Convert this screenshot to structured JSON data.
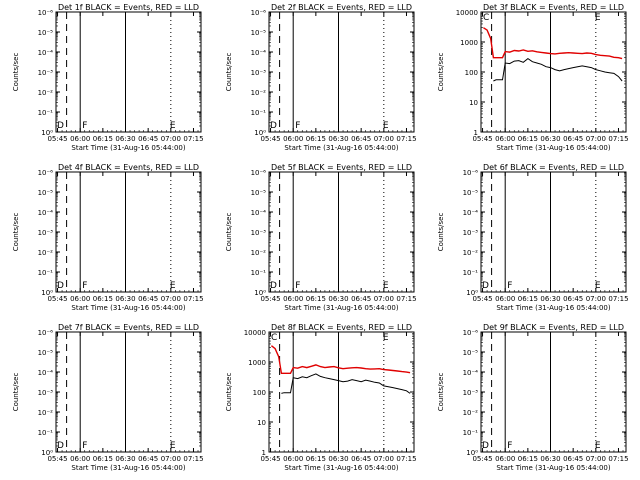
{
  "figure": {
    "time_ticks": [
      "05:45",
      "06:00",
      "06:15",
      "06:30",
      "06:45",
      "07:00",
      "07:15"
    ],
    "xlabel": "Start Time (31-Aug-16 05:44:00)",
    "ylabel": "Counts/sec",
    "tick_labels": {
      "empty": [
        "10⁰",
        "10⁻¹",
        "10⁻²",
        "10⁻³",
        "10⁻⁴",
        "10⁻⁵",
        "10⁻⁶"
      ],
      "log": [
        "1",
        "10",
        "100",
        "1000",
        "10000"
      ]
    },
    "markers": {
      "d": "D",
      "f": "F",
      "e": "E",
      "c": "C"
    },
    "colors": {
      "events": "#000000",
      "lld": "#e00000"
    }
  },
  "chart_data": [
    {
      "type": "line",
      "title": "Det 1f BLACK = Events, RED = LLD",
      "scale": "empty",
      "series": []
    },
    {
      "type": "line",
      "title": "Det 2f BLACK = Events, RED = LLD",
      "scale": "empty",
      "series": []
    },
    {
      "type": "line",
      "title": "Det 3f BLACK = Events, RED = LLD",
      "scale": "log",
      "ylim": [
        1,
        10000
      ],
      "x": [
        5.76,
        5.8,
        5.84,
        5.87,
        5.9,
        5.93,
        5.97,
        6.0,
        6.05,
        6.1,
        6.15,
        6.2,
        6.25,
        6.3,
        6.35,
        6.4,
        6.45,
        6.5,
        6.55,
        6.6,
        6.65,
        6.7,
        6.75,
        6.8,
        6.85,
        6.9,
        6.95,
        7.0,
        7.05,
        7.1,
        7.15,
        7.2,
        7.25,
        7.29
      ],
      "series": [
        {
          "name": "LLD",
          "color": "red",
          "values": [
            3000,
            2500,
            1300,
            300,
            300,
            300,
            300,
            480,
            460,
            520,
            500,
            540,
            490,
            510,
            470,
            450,
            430,
            410,
            400,
            420,
            430,
            440,
            430,
            420,
            410,
            430,
            420,
            380,
            360,
            350,
            340,
            310,
            300,
            280
          ]
        },
        {
          "name": "Events",
          "color": "black",
          "values": [
            null,
            null,
            null,
            50,
            55,
            55,
            55,
            200,
            190,
            230,
            240,
            210,
            280,
            220,
            200,
            180,
            150,
            140,
            120,
            110,
            120,
            130,
            140,
            150,
            160,
            150,
            140,
            120,
            110,
            100,
            95,
            90,
            70,
            50
          ]
        }
      ]
    },
    {
      "type": "line",
      "title": "Det 4f BLACK = Events, RED = LLD",
      "scale": "empty",
      "series": []
    },
    {
      "type": "line",
      "title": "Det 5f BLACK = Events, RED = LLD",
      "scale": "empty",
      "series": []
    },
    {
      "type": "line",
      "title": "Det 6f BLACK = Events, RED = LLD",
      "scale": "empty",
      "series": []
    },
    {
      "type": "line",
      "title": "Det 7f BLACK = Events, RED = LLD",
      "scale": "empty",
      "series": []
    },
    {
      "type": "line",
      "title": "Det 8f BLACK = Events, RED = LLD",
      "scale": "log",
      "ylim": [
        1,
        10000
      ],
      "x": [
        5.76,
        5.8,
        5.84,
        5.87,
        5.9,
        5.93,
        5.97,
        6.0,
        6.05,
        6.1,
        6.15,
        6.2,
        6.25,
        6.3,
        6.35,
        6.4,
        6.45,
        6.5,
        6.55,
        6.6,
        6.65,
        6.7,
        6.75,
        6.8,
        6.85,
        6.9,
        6.95,
        7.0,
        7.05,
        7.1,
        7.15,
        7.2,
        7.25,
        7.29
      ],
      "series": [
        {
          "name": "LLD",
          "color": "red",
          "values": [
            3500,
            2800,
            1500,
            420,
            420,
            420,
            420,
            650,
            620,
            700,
            650,
            720,
            800,
            700,
            650,
            680,
            700,
            640,
            600,
            620,
            640,
            650,
            630,
            600,
            580,
            590,
            600,
            560,
            540,
            520,
            500,
            480,
            460,
            440
          ]
        },
        {
          "name": "Events",
          "color": "black",
          "values": [
            null,
            null,
            null,
            90,
            95,
            95,
            95,
            300,
            280,
            320,
            300,
            350,
            400,
            330,
            300,
            280,
            260,
            240,
            220,
            230,
            260,
            240,
            220,
            250,
            230,
            210,
            200,
            160,
            150,
            140,
            130,
            120,
            110,
            90
          ]
        }
      ]
    },
    {
      "type": "line",
      "title": "Det 9f BLACK = Events, RED = LLD",
      "scale": "empty",
      "series": []
    }
  ]
}
